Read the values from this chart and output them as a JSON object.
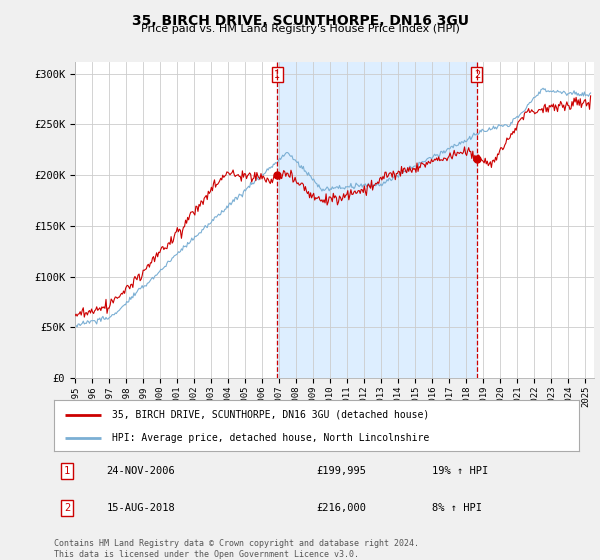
{
  "title": "35, BIRCH DRIVE, SCUNTHORPE, DN16 3GU",
  "subtitle": "Price paid vs. HM Land Registry's House Price Index (HPI)",
  "ylabel_ticks": [
    "£0",
    "£50K",
    "£100K",
    "£150K",
    "£200K",
    "£250K",
    "£300K"
  ],
  "ytick_values": [
    0,
    50000,
    100000,
    150000,
    200000,
    250000,
    300000
  ],
  "ylim": [
    0,
    312000
  ],
  "xlim_start": 1995.0,
  "xlim_end": 2025.5,
  "hpi_color": "#7bafd4",
  "price_color": "#cc0000",
  "shade_color": "#ddeeff",
  "marker1_x": 2006.9,
  "marker1_y": 199995,
  "marker2_x": 2018.62,
  "marker2_y": 216000,
  "annotation1_label": "1",
  "annotation1_date": "24-NOV-2006",
  "annotation1_price": "£199,995",
  "annotation1_hpi": "19% ↑ HPI",
  "annotation2_label": "2",
  "annotation2_date": "15-AUG-2018",
  "annotation2_price": "£216,000",
  "annotation2_hpi": "8% ↑ HPI",
  "legend_line1": "35, BIRCH DRIVE, SCUNTHORPE, DN16 3GU (detached house)",
  "legend_line2": "HPI: Average price, detached house, North Lincolnshire",
  "footer": "Contains HM Land Registry data © Crown copyright and database right 2024.\nThis data is licensed under the Open Government Licence v3.0.",
  "background_color": "#f0f0f0",
  "plot_bg_color": "#ffffff"
}
